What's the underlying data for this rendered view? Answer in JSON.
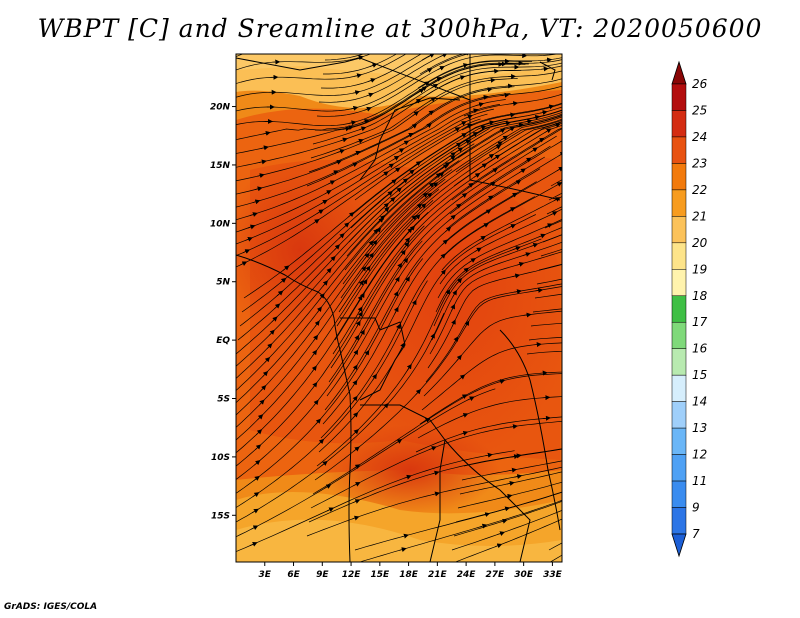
{
  "title": "WBPT [C] and Sreamline at 300hPa, VT: 2020050600",
  "credit": "GrADS: IGES/COLA",
  "map": {
    "lat_labels": [
      "20N",
      "15N",
      "10N",
      "5N",
      "EQ",
      "5S",
      "10S",
      "15S"
    ],
    "lon_labels": [
      "3E",
      "6E",
      "9E",
      "12E",
      "15E",
      "18E",
      "21E",
      "24E",
      "27E",
      "30E",
      "33E"
    ],
    "lon_range": [
      0,
      34
    ],
    "lat_range": [
      -19,
      24.5
    ],
    "field_name": "WBPT",
    "units": "C",
    "level": "300hPa",
    "valid_time": "2020050600"
  },
  "colorbar": {
    "levels": [
      "7",
      "9",
      "11",
      "12",
      "13",
      "14",
      "15",
      "16",
      "17",
      "18",
      "19",
      "20",
      "21",
      "22",
      "23",
      "24",
      "25",
      "26"
    ],
    "colors": [
      "#1c5fd6",
      "#2c75e6",
      "#3a8cef",
      "#4fa1f4",
      "#6ab6f7",
      "#9fcffa",
      "#d6eefc",
      "#b8eab0",
      "#7fd97a",
      "#3fbf45",
      "#fff3ad",
      "#fde48a",
      "#fbc25a",
      "#f79c1f",
      "#f27a0c",
      "#e85211",
      "#d42c12",
      "#b30d0d",
      "#8a0606"
    ]
  },
  "streamlines": {
    "flow_description": "westerly/southwesterly flow"
  }
}
